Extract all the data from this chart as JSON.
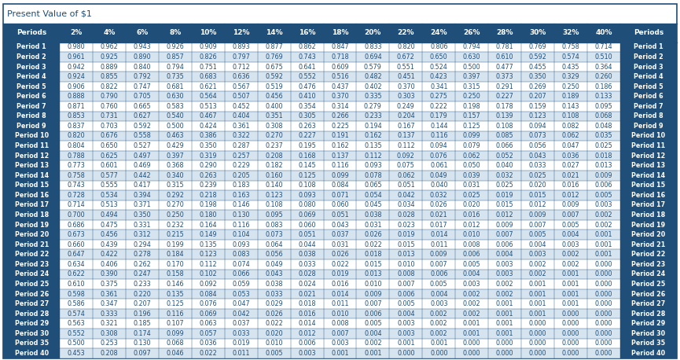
{
  "title": "Present Value of $1",
  "columns": [
    "Periods",
    "2%",
    "4%",
    "6%",
    "8%",
    "10%",
    "12%",
    "14%",
    "16%",
    "18%",
    "20%",
    "22%",
    "24%",
    "26%",
    "28%",
    "30%",
    "32%",
    "40%",
    "Periods"
  ],
  "rows": [
    [
      "Period 1",
      "0.980",
      "0.962",
      "0.943",
      "0.926",
      "0.909",
      "0.893",
      "0.877",
      "0.862",
      "0.847",
      "0.833",
      "0.820",
      "0.806",
      "0.794",
      "0.781",
      "0.769",
      "0.758",
      "0.714",
      "Period 1"
    ],
    [
      "Period 2",
      "0.961",
      "0.925",
      "0.890",
      "0.857",
      "0.826",
      "0.797",
      "0.769",
      "0.743",
      "0.718",
      "0.694",
      "0.672",
      "0.650",
      "0.630",
      "0.610",
      "0.592",
      "0.574",
      "0.510",
      "Period 2"
    ],
    [
      "Period 3",
      "0.942",
      "0.889",
      "0.840",
      "0.794",
      "0.751",
      "0.712",
      "0.675",
      "0.641",
      "0.609",
      "0.579",
      "0.551",
      "0.524",
      "0.500",
      "0.477",
      "0.455",
      "0.435",
      "0.364",
      "Period 3"
    ],
    [
      "Period 4",
      "0.924",
      "0.855",
      "0.792",
      "0.735",
      "0.683",
      "0.636",
      "0.592",
      "0.552",
      "0.516",
      "0.482",
      "0.451",
      "0.423",
      "0.397",
      "0.373",
      "0.350",
      "0.329",
      "0.260",
      "Period 4"
    ],
    [
      "Period 5",
      "0.906",
      "0.822",
      "0.747",
      "0.681",
      "0.621",
      "0.567",
      "0.519",
      "0.476",
      "0.437",
      "0.402",
      "0.370",
      "0.341",
      "0.315",
      "0.291",
      "0.269",
      "0.250",
      "0.186",
      "Period 5"
    ],
    [
      "Period 6",
      "0.888",
      "0.790",
      "0.705",
      "0.630",
      "0.564",
      "0.507",
      "0.456",
      "0.410",
      "0.370",
      "0.335",
      "0.303",
      "0.275",
      "0.250",
      "0.227",
      "0.207",
      "0.189",
      "0.133",
      "Period 6"
    ],
    [
      "Period 7",
      "0.871",
      "0.760",
      "0.665",
      "0.583",
      "0.513",
      "0.452",
      "0.400",
      "0.354",
      "0.314",
      "0.279",
      "0.249",
      "0.222",
      "0.198",
      "0.178",
      "0.159",
      "0.143",
      "0.095",
      "Period 7"
    ],
    [
      "Period 8",
      "0.853",
      "0.731",
      "0.627",
      "0.540",
      "0.467",
      "0.404",
      "0.351",
      "0.305",
      "0.266",
      "0.233",
      "0.204",
      "0.179",
      "0.157",
      "0.139",
      "0.123",
      "0.108",
      "0.068",
      "Period 8"
    ],
    [
      "Period 9",
      "0.837",
      "0.703",
      "0.592",
      "0.500",
      "0.424",
      "0.361",
      "0.308",
      "0.263",
      "0.225",
      "0.194",
      "0.167",
      "0.144",
      "0.125",
      "0.108",
      "0.094",
      "0.082",
      "0.048",
      "Period 9"
    ],
    [
      "Period 10",
      "0.820",
      "0.676",
      "0.558",
      "0.463",
      "0.386",
      "0.322",
      "0.270",
      "0.227",
      "0.191",
      "0.162",
      "0.137",
      "0.116",
      "0.099",
      "0.085",
      "0.073",
      "0.062",
      "0.035",
      "Period 10"
    ],
    [
      "Period 11",
      "0.804",
      "0.650",
      "0.527",
      "0.429",
      "0.350",
      "0.287",
      "0.237",
      "0.195",
      "0.162",
      "0.135",
      "0.112",
      "0.094",
      "0.079",
      "0.066",
      "0.056",
      "0.047",
      "0.025",
      "Period 11"
    ],
    [
      "Period 12",
      "0.788",
      "0.625",
      "0.497",
      "0.397",
      "0.319",
      "0.257",
      "0.208",
      "0.168",
      "0.137",
      "0.112",
      "0.092",
      "0.076",
      "0.062",
      "0.052",
      "0.043",
      "0.036",
      "0.018",
      "Period 12"
    ],
    [
      "Period 13",
      "0.773",
      "0.601",
      "0.469",
      "0.368",
      "0.290",
      "0.229",
      "0.182",
      "0.145",
      "0.116",
      "0.093",
      "0.075",
      "0.061",
      "0.050",
      "0.040",
      "0.033",
      "0.027",
      "0.013",
      "Period 13"
    ],
    [
      "Period 14",
      "0.758",
      "0.577",
      "0.442",
      "0.340",
      "0.263",
      "0.205",
      "0.160",
      "0.125",
      "0.099",
      "0.078",
      "0.062",
      "0.049",
      "0.039",
      "0.032",
      "0.025",
      "0.021",
      "0.009",
      "Period 14"
    ],
    [
      "Period 15",
      "0.743",
      "0.555",
      "0.417",
      "0.315",
      "0.239",
      "0.183",
      "0.140",
      "0.108",
      "0.084",
      "0.065",
      "0.051",
      "0.040",
      "0.031",
      "0.025",
      "0.020",
      "0.016",
      "0.006",
      "Period 15"
    ],
    [
      "Period 16",
      "0.728",
      "0.534",
      "0.394",
      "0.292",
      "0.218",
      "0.163",
      "0.123",
      "0.093",
      "0.071",
      "0.054",
      "0.042",
      "0.032",
      "0.025",
      "0.019",
      "0.015",
      "0.012",
      "0.005",
      "Period 16"
    ],
    [
      "Period 17",
      "0.714",
      "0.513",
      "0.371",
      "0.270",
      "0.198",
      "0.146",
      "0.108",
      "0.080",
      "0.060",
      "0.045",
      "0.034",
      "0.026",
      "0.020",
      "0.015",
      "0.012",
      "0.009",
      "0.003",
      "Period 17"
    ],
    [
      "Period 18",
      "0.700",
      "0.494",
      "0.350",
      "0.250",
      "0.180",
      "0.130",
      "0.095",
      "0.069",
      "0.051",
      "0.038",
      "0.028",
      "0.021",
      "0.016",
      "0.012",
      "0.009",
      "0.007",
      "0.002",
      "Period 18"
    ],
    [
      "Period 19",
      "0.686",
      "0.475",
      "0.331",
      "0.232",
      "0.164",
      "0.116",
      "0.083",
      "0.060",
      "0.043",
      "0.031",
      "0.023",
      "0.017",
      "0.012",
      "0.009",
      "0.007",
      "0.005",
      "0.002",
      "Period 19"
    ],
    [
      "Period 20",
      "0.673",
      "0.456",
      "0.312",
      "0.215",
      "0.149",
      "0.104",
      "0.073",
      "0.051",
      "0.037",
      "0.026",
      "0.019",
      "0.014",
      "0.010",
      "0.007",
      "0.005",
      "0.004",
      "0.001",
      "Period 20"
    ],
    [
      "Period 21",
      "0.660",
      "0.439",
      "0.294",
      "0.199",
      "0.135",
      "0.093",
      "0.064",
      "0.044",
      "0.031",
      "0.022",
      "0.015",
      "0.011",
      "0.008",
      "0.006",
      "0.004",
      "0.003",
      "0.001",
      "Period 21"
    ],
    [
      "Period 22",
      "0.647",
      "0.422",
      "0.278",
      "0.184",
      "0.123",
      "0.083",
      "0.056",
      "0.038",
      "0.026",
      "0.018",
      "0.013",
      "0.009",
      "0.006",
      "0.004",
      "0.003",
      "0.002",
      "0.001",
      "Period 22"
    ],
    [
      "Period 23",
      "0.634",
      "0.406",
      "0.262",
      "0.170",
      "0.112",
      "0.074",
      "0.049",
      "0.033",
      "0.022",
      "0.015",
      "0.010",
      "0.007",
      "0.005",
      "0.003",
      "0.002",
      "0.002",
      "0.000",
      "Period 23"
    ],
    [
      "Period 24",
      "0.622",
      "0.390",
      "0.247",
      "0.158",
      "0.102",
      "0.066",
      "0.043",
      "0.028",
      "0.019",
      "0.013",
      "0.008",
      "0.006",
      "0.004",
      "0.003",
      "0.002",
      "0.001",
      "0.000",
      "Period 24"
    ],
    [
      "Period 25",
      "0.610",
      "0.375",
      "0.233",
      "0.146",
      "0.092",
      "0.059",
      "0.038",
      "0.024",
      "0.016",
      "0.010",
      "0.007",
      "0.005",
      "0.003",
      "0.002",
      "0.001",
      "0.001",
      "0.000",
      "Period 25"
    ],
    [
      "Period 26",
      "0.598",
      "0.361",
      "0.220",
      "0.135",
      "0.084",
      "0.053",
      "0.033",
      "0.021",
      "0.014",
      "0.009",
      "0.006",
      "0.004",
      "0.002",
      "0.002",
      "0.001",
      "0.001",
      "0.000",
      "Period 26"
    ],
    [
      "Period 27",
      "0.586",
      "0.347",
      "0.207",
      "0.125",
      "0.076",
      "0.047",
      "0.029",
      "0.018",
      "0.011",
      "0.007",
      "0.005",
      "0.003",
      "0.002",
      "0.001",
      "0.001",
      "0.001",
      "0.000",
      "Period 27"
    ],
    [
      "Period 28",
      "0.574",
      "0.333",
      "0.196",
      "0.116",
      "0.069",
      "0.042",
      "0.026",
      "0.016",
      "0.010",
      "0.006",
      "0.004",
      "0.002",
      "0.002",
      "0.001",
      "0.001",
      "0.000",
      "0.000",
      "Period 28"
    ],
    [
      "Period 29",
      "0.563",
      "0.321",
      "0.185",
      "0.107",
      "0.063",
      "0.037",
      "0.022",
      "0.014",
      "0.008",
      "0.005",
      "0.003",
      "0.002",
      "0.001",
      "0.001",
      "0.000",
      "0.000",
      "0.000",
      "Period 29"
    ],
    [
      "Period 30",
      "0.552",
      "0.308",
      "0.174",
      "0.099",
      "0.057",
      "0.033",
      "0.020",
      "0.012",
      "0.007",
      "0.004",
      "0.003",
      "0.002",
      "0.001",
      "0.001",
      "0.000",
      "0.000",
      "0.000",
      "Period 30"
    ],
    [
      "Period 35",
      "0.500",
      "0.253",
      "0.130",
      "0.068",
      "0.036",
      "0.019",
      "0.010",
      "0.006",
      "0.003",
      "0.002",
      "0.001",
      "0.001",
      "0.000",
      "0.000",
      "0.000",
      "0.000",
      "0.000",
      "Period 35"
    ],
    [
      "Period 40",
      "0.453",
      "0.208",
      "0.097",
      "0.046",
      "0.022",
      "0.011",
      "0.005",
      "0.003",
      "0.001",
      "0.001",
      "0.000",
      "0.000",
      "0.000",
      "0.000",
      "0.000",
      "0.000",
      "0.000",
      "Period 40"
    ]
  ],
  "header_bg": "#1F4E79",
  "header_fg": "#FFFFFF",
  "row_bg_odd": "#FFFFFF",
  "row_bg_even": "#D6E4F0",
  "cell_fg": "#1F4E79",
  "title_fg": "#1F4E79",
  "border_color": "#1F4E79",
  "figure_bg": "#FFFFFF",
  "outer_border_color": "#1F4E79"
}
